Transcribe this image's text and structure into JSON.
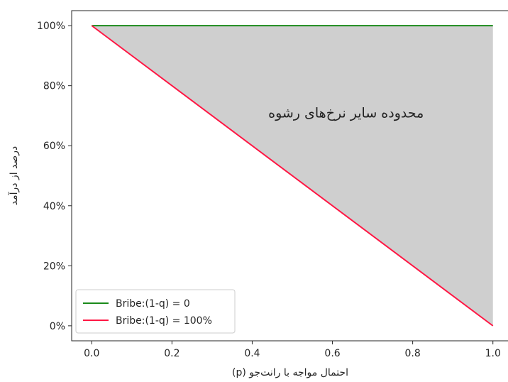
{
  "chart_data": {
    "type": "line",
    "xlabel": "احتمال مواجه با رانت‌جو (p)",
    "ylabel": "درصد از درآمد",
    "xlim": [
      -0.05,
      1.05
    ],
    "ylim": [
      -5,
      105
    ],
    "x_ticks": [
      0.0,
      0.2,
      0.4,
      0.6,
      0.8,
      1.0
    ],
    "x_tick_labels": [
      "0.0",
      "0.2",
      "0.4",
      "0.6",
      "0.8",
      "1.0"
    ],
    "y_ticks": [
      0,
      20,
      40,
      60,
      80,
      100
    ],
    "y_tick_labels": [
      "0%",
      "20%",
      "40%",
      "60%",
      "80%",
      "100%"
    ],
    "grid": false,
    "legend_position": "lower-left",
    "series": [
      {
        "name": "Bribe:(1-q) = 0",
        "color": "#1a8a1a",
        "x": [
          0.0,
          1.0
        ],
        "y": [
          100,
          100
        ]
      },
      {
        "name": "Bribe:(1-q) = 100%",
        "color": "#ff1744",
        "x": [
          0.0,
          1.0
        ],
        "y": [
          100,
          0
        ]
      }
    ],
    "shaded_region": {
      "between": [
        "Bribe:(1-q) = 0",
        "Bribe:(1-q) = 100%"
      ],
      "color": "#cfcfcf"
    },
    "annotations": [
      {
        "text": "محدوده سایر نرخ‌های رشوه",
        "x": 0.74,
        "y": 71
      }
    ]
  }
}
